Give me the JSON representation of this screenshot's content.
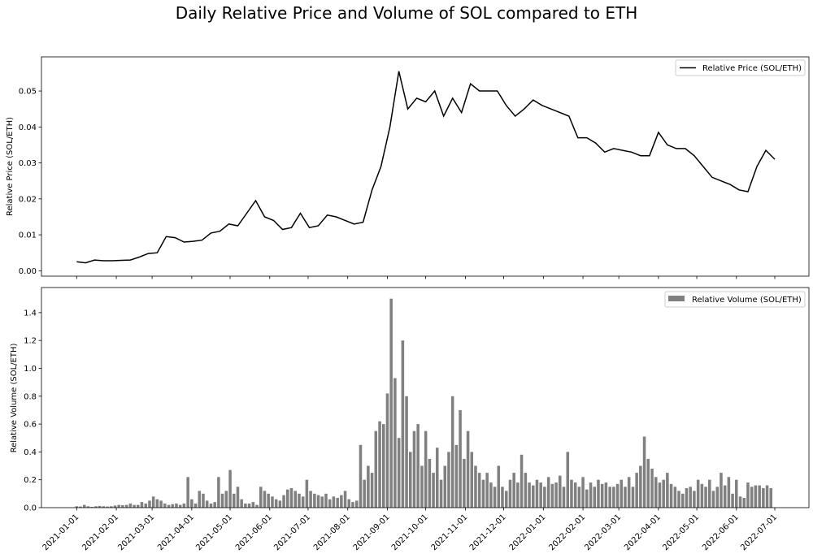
{
  "chart_data": [
    {
      "type": "line",
      "title": "Daily Relative Price and Volume of SOL compared to ETH",
      "ylabel": "Relative Price (SOL/ETH)",
      "xlabel": "",
      "legend": {
        "label": "Relative Price (SOL/ETH)",
        "placement": "top-right"
      },
      "color": "#000000",
      "ylim": [
        -0.0015,
        0.0595
      ],
      "yticks": [
        "0.00",
        "0.01",
        "0.02",
        "0.03",
        "0.04",
        "0.05"
      ],
      "ytick_values": [
        0,
        0.01,
        0.02,
        0.03,
        0.04,
        0.05
      ],
      "x_start": "2021-01-01",
      "x_step_days": 7,
      "values": [
        0.0025,
        0.0022,
        0.003,
        0.0028,
        0.0028,
        0.0029,
        0.003,
        0.0038,
        0.0048,
        0.005,
        0.0095,
        0.0092,
        0.008,
        0.0082,
        0.0085,
        0.0105,
        0.011,
        0.013,
        0.0125,
        0.016,
        0.0195,
        0.015,
        0.014,
        0.0115,
        0.012,
        0.016,
        0.012,
        0.0125,
        0.0155,
        0.015,
        0.014,
        0.013,
        0.0135,
        0.0225,
        0.029,
        0.04,
        0.0555,
        0.045,
        0.048,
        0.047,
        0.05,
        0.043,
        0.048,
        0.044,
        0.052,
        0.05,
        0.05,
        0.05,
        0.046,
        0.043,
        0.045,
        0.0475,
        0.046,
        0.045,
        0.044,
        0.043,
        0.037,
        0.037,
        0.0355,
        0.033,
        0.034,
        0.0335,
        0.033,
        0.032,
        0.032,
        0.0385,
        0.035,
        0.034,
        0.034,
        0.032,
        0.029,
        0.026,
        0.025,
        0.024,
        0.0225,
        0.022,
        0.029,
        0.0335,
        0.031
      ]
    },
    {
      "type": "bar",
      "ylabel": "Relative Volume (SOL/ETH)",
      "xlabel": "",
      "legend": {
        "label": "Relative Volume (SOL/ETH)",
        "placement": "top-right"
      },
      "color": "#808080",
      "ylim": [
        0,
        1.58
      ],
      "yticks": [
        "0.0",
        "0.2",
        "0.4",
        "0.6",
        "0.8",
        "1.0",
        "1.2",
        "1.4"
      ],
      "ytick_values": [
        0,
        0.2,
        0.4,
        0.6,
        0.8,
        1.0,
        1.2,
        1.4
      ],
      "x_start": "2021-01-01",
      "x_step_days": 3,
      "xticks": [
        "2021-01-01",
        "2021-02-01",
        "2021-03-01",
        "2021-04-01",
        "2021-05-01",
        "2021-06-01",
        "2021-07-01",
        "2021-08-01",
        "2021-09-01",
        "2021-10-01",
        "2021-11-01",
        "2021-12-01",
        "2022-01-01",
        "2022-02-01",
        "2022-03-01",
        "2022-04-01",
        "2022-05-01",
        "2022-06-01",
        "2022-07-01"
      ],
      "values": [
        0.01,
        0.008,
        0.02,
        0.01,
        0.006,
        0.01,
        0.012,
        0.01,
        0.008,
        0.01,
        0.015,
        0.02,
        0.018,
        0.02,
        0.03,
        0.02,
        0.02,
        0.04,
        0.03,
        0.05,
        0.08,
        0.06,
        0.05,
        0.03,
        0.02,
        0.025,
        0.03,
        0.02,
        0.03,
        0.22,
        0.06,
        0.03,
        0.12,
        0.1,
        0.05,
        0.03,
        0.04,
        0.22,
        0.1,
        0.12,
        0.27,
        0.1,
        0.15,
        0.06,
        0.03,
        0.03,
        0.04,
        0.02,
        0.15,
        0.12,
        0.1,
        0.08,
        0.06,
        0.05,
        0.09,
        0.13,
        0.14,
        0.12,
        0.1,
        0.08,
        0.2,
        0.12,
        0.1,
        0.09,
        0.08,
        0.1,
        0.06,
        0.08,
        0.07,
        0.09,
        0.12,
        0.06,
        0.04,
        0.05,
        0.45,
        0.2,
        0.3,
        0.25,
        0.55,
        0.62,
        0.6,
        0.82,
        1.5,
        0.93,
        0.5,
        1.2,
        0.8,
        0.4,
        0.55,
        0.6,
        0.3,
        0.55,
        0.35,
        0.25,
        0.43,
        0.2,
        0.3,
        0.4,
        0.8,
        0.45,
        0.7,
        0.35,
        0.55,
        0.4,
        0.3,
        0.25,
        0.2,
        0.25,
        0.18,
        0.15,
        0.3,
        0.15,
        0.12,
        0.2,
        0.25,
        0.18,
        0.38,
        0.25,
        0.18,
        0.16,
        0.2,
        0.18,
        0.15,
        0.22,
        0.17,
        0.18,
        0.23,
        0.15,
        0.4,
        0.2,
        0.18,
        0.15,
        0.22,
        0.13,
        0.18,
        0.15,
        0.2,
        0.17,
        0.18,
        0.15,
        0.15,
        0.17,
        0.2,
        0.15,
        0.22,
        0.15,
        0.25,
        0.3,
        0.51,
        0.35,
        0.28,
        0.22,
        0.18,
        0.2,
        0.25,
        0.17,
        0.15,
        0.12,
        0.1,
        0.14,
        0.15,
        0.12,
        0.2,
        0.17,
        0.15,
        0.2,
        0.12,
        0.15,
        0.25,
        0.16,
        0.22,
        0.1,
        0.2,
        0.08,
        0.07,
        0.18,
        0.15,
        0.16,
        0.16,
        0.14,
        0.16,
        0.14
      ]
    }
  ]
}
